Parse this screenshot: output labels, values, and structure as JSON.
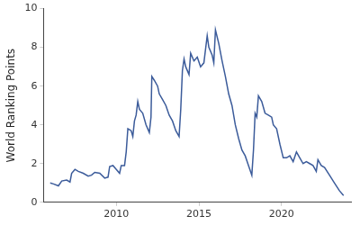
{
  "chart_data": {
    "type": "line",
    "y_label": "World Ranking Points",
    "x": [
      2006.0,
      2006.2,
      2006.5,
      2006.7,
      2007.0,
      2007.2,
      2007.3,
      2007.5,
      2007.7,
      2008.0,
      2008.3,
      2008.5,
      2008.7,
      2009.0,
      2009.3,
      2009.5,
      2009.6,
      2009.8,
      2010.0,
      2010.2,
      2010.3,
      2010.5,
      2010.6,
      2010.7,
      2010.9,
      2011.0,
      2011.1,
      2011.2,
      2011.3,
      2011.4,
      2011.6,
      2011.8,
      2012.0,
      2012.1,
      2012.15,
      2012.3,
      2012.5,
      2012.6,
      2012.8,
      2013.0,
      2013.2,
      2013.4,
      2013.6,
      2013.8,
      2013.9,
      2014.0,
      2014.1,
      2014.2,
      2014.4,
      2014.5,
      2014.7,
      2014.9,
      2015.1,
      2015.3,
      2015.5,
      2015.6,
      2015.8,
      2015.9,
      2016.0,
      2016.2,
      2016.4,
      2016.6,
      2016.8,
      2017.0,
      2017.2,
      2017.4,
      2017.6,
      2017.8,
      2018.0,
      2018.2,
      2018.3,
      2018.4,
      2018.5,
      2018.6,
      2018.8,
      2019.0,
      2019.2,
      2019.4,
      2019.5,
      2019.7,
      2019.9,
      2020.1,
      2020.3,
      2020.5,
      2020.7,
      2020.9,
      2021.1,
      2021.3,
      2021.5,
      2021.7,
      2021.9,
      2022.1,
      2022.2,
      2022.4,
      2022.6,
      2022.9,
      2023.2,
      2023.5,
      2023.75
    ],
    "values": [
      1.0,
      0.95,
      0.85,
      1.1,
      1.15,
      1.05,
      1.5,
      1.7,
      1.6,
      1.5,
      1.35,
      1.4,
      1.55,
      1.5,
      1.25,
      1.3,
      1.85,
      1.9,
      1.7,
      1.5,
      1.9,
      1.9,
      2.6,
      3.8,
      3.7,
      3.4,
      4.2,
      4.5,
      5.2,
      4.8,
      4.6,
      4.0,
      3.6,
      4.4,
      6.5,
      6.3,
      6.0,
      5.6,
      5.3,
      5.0,
      4.5,
      4.2,
      3.7,
      3.4,
      4.8,
      6.8,
      7.4,
      7.0,
      6.6,
      7.7,
      7.3,
      7.5,
      7.0,
      7.2,
      8.6,
      8.0,
      7.6,
      7.2,
      8.9,
      8.2,
      7.3,
      6.5,
      5.6,
      5.0,
      4.0,
      3.3,
      2.7,
      2.4,
      1.9,
      1.4,
      2.7,
      4.6,
      4.4,
      5.5,
      5.2,
      4.6,
      4.5,
      4.4,
      4.0,
      3.8,
      3.0,
      2.3,
      2.3,
      2.4,
      2.1,
      2.6,
      2.3,
      2.0,
      2.1,
      2.0,
      1.9,
      1.6,
      2.2,
      1.9,
      1.8,
      1.4,
      1.0,
      0.6,
      0.35
    ],
    "color": "#3b5b9a",
    "xlim": [
      2005.6,
      2024.2
    ],
    "xticks": [
      2010,
      2015,
      2020
    ],
    "ylim": [
      0,
      10
    ],
    "yticks": [
      0,
      2,
      4,
      6,
      8,
      10
    ],
    "grid": false
  }
}
